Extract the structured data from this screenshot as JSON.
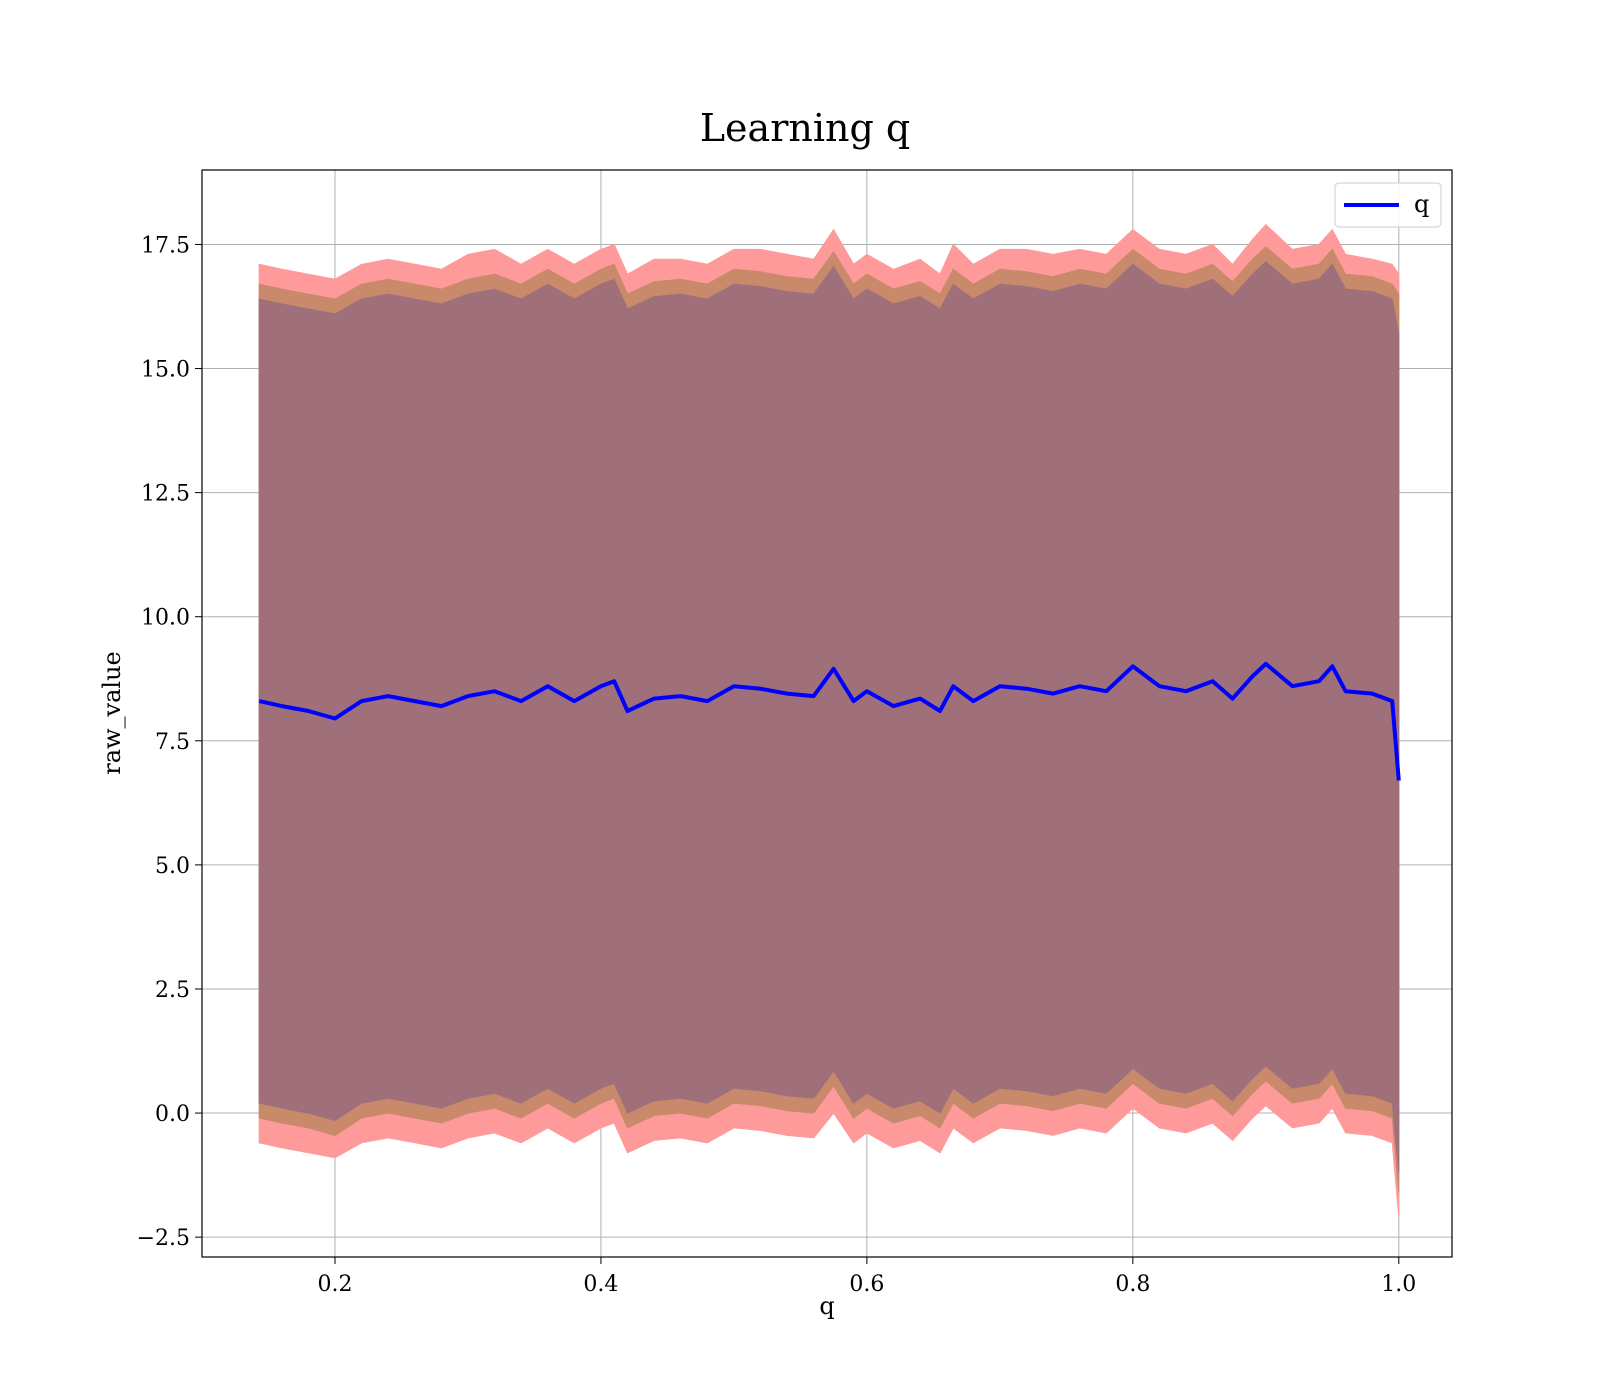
{
  "chart_data": {
    "type": "line",
    "title": "Learning q",
    "xlabel": "q",
    "ylabel": "raw_value",
    "xlim": [
      0.1,
      1.04
    ],
    "ylim": [
      -2.9,
      19.0
    ],
    "x_ticks": [
      0.2,
      0.4,
      0.6,
      0.8,
      1.0
    ],
    "x_tick_labels": [
      "0.2",
      "0.4",
      "0.6",
      "0.8",
      "1.0"
    ],
    "y_ticks": [
      -2.5,
      0.0,
      2.5,
      5.0,
      7.5,
      10.0,
      12.5,
      15.0,
      17.5
    ],
    "y_tick_labels": [
      "−2.5",
      "0.0",
      "2.5",
      "5.0",
      "7.5",
      "10.0",
      "12.5",
      "15.0",
      "17.5"
    ],
    "grid": true,
    "legend": {
      "position": "top-right",
      "entries": [
        "q"
      ]
    },
    "colors": {
      "line": "#0000ff",
      "band_outer": "#ff9a9a",
      "band_middle": "#c88a6a",
      "band_inner": "#a0707a"
    },
    "series": [
      {
        "name": "q",
        "x": [
          0.143,
          0.16,
          0.18,
          0.2,
          0.22,
          0.24,
          0.26,
          0.28,
          0.3,
          0.32,
          0.34,
          0.36,
          0.38,
          0.4,
          0.41,
          0.42,
          0.44,
          0.46,
          0.48,
          0.5,
          0.52,
          0.54,
          0.56,
          0.575,
          0.59,
          0.6,
          0.62,
          0.64,
          0.655,
          0.665,
          0.68,
          0.7,
          0.72,
          0.74,
          0.76,
          0.78,
          0.8,
          0.82,
          0.84,
          0.86,
          0.875,
          0.89,
          0.9,
          0.92,
          0.94,
          0.95,
          0.96,
          0.98,
          0.995,
          1.0
        ],
        "y": [
          8.3,
          8.2,
          8.1,
          7.95,
          8.3,
          8.4,
          8.3,
          8.2,
          8.4,
          8.5,
          8.3,
          8.6,
          8.3,
          8.6,
          8.7,
          8.1,
          8.35,
          8.4,
          8.3,
          8.6,
          8.55,
          8.45,
          8.4,
          8.95,
          8.3,
          8.5,
          8.2,
          8.35,
          8.1,
          8.6,
          8.3,
          8.6,
          8.55,
          8.45,
          8.6,
          8.5,
          9.0,
          8.6,
          8.5,
          8.7,
          8.35,
          8.8,
          9.05,
          8.6,
          8.7,
          9.0,
          8.5,
          8.45,
          8.3,
          6.7
        ]
      }
    ],
    "bands": [
      {
        "name": "outer",
        "upper": [
          17.1,
          17.0,
          16.9,
          16.8,
          17.1,
          17.2,
          17.1,
          17.0,
          17.3,
          17.4,
          17.1,
          17.4,
          17.1,
          17.4,
          17.5,
          16.9,
          17.2,
          17.2,
          17.1,
          17.4,
          17.4,
          17.3,
          17.2,
          17.8,
          17.1,
          17.3,
          17.0,
          17.2,
          16.9,
          17.5,
          17.1,
          17.4,
          17.4,
          17.3,
          17.4,
          17.3,
          17.8,
          17.4,
          17.3,
          17.5,
          17.1,
          17.6,
          17.9,
          17.4,
          17.5,
          17.8,
          17.3,
          17.2,
          17.1,
          16.9
        ],
        "lower": [
          -0.6,
          -0.7,
          -0.8,
          -0.9,
          -0.6,
          -0.5,
          -0.6,
          -0.7,
          -0.5,
          -0.4,
          -0.6,
          -0.3,
          -0.6,
          -0.3,
          -0.2,
          -0.8,
          -0.55,
          -0.5,
          -0.6,
          -0.3,
          -0.35,
          -0.45,
          -0.5,
          0.0,
          -0.6,
          -0.4,
          -0.7,
          -0.55,
          -0.8,
          -0.3,
          -0.6,
          -0.3,
          -0.35,
          -0.45,
          -0.3,
          -0.4,
          0.1,
          -0.3,
          -0.4,
          -0.2,
          -0.55,
          -0.1,
          0.15,
          -0.3,
          -0.2,
          0.1,
          -0.4,
          -0.45,
          -0.6,
          -2.1
        ]
      },
      {
        "name": "middle",
        "upper": [
          16.7,
          16.6,
          16.5,
          16.4,
          16.7,
          16.8,
          16.7,
          16.6,
          16.8,
          16.9,
          16.7,
          17.0,
          16.7,
          17.0,
          17.1,
          16.5,
          16.75,
          16.8,
          16.7,
          17.0,
          16.95,
          16.85,
          16.8,
          17.35,
          16.7,
          16.9,
          16.6,
          16.75,
          16.5,
          17.0,
          16.7,
          17.0,
          16.95,
          16.85,
          17.0,
          16.9,
          17.4,
          17.0,
          16.9,
          17.1,
          16.75,
          17.2,
          17.45,
          17.0,
          17.1,
          17.4,
          16.9,
          16.85,
          16.7,
          16.5
        ],
        "lower": [
          -0.1,
          -0.2,
          -0.3,
          -0.45,
          -0.1,
          0.0,
          -0.1,
          -0.2,
          0.0,
          0.1,
          -0.1,
          0.2,
          -0.1,
          0.2,
          0.3,
          -0.3,
          -0.05,
          0.0,
          -0.1,
          0.2,
          0.15,
          0.05,
          0.0,
          0.55,
          -0.1,
          0.1,
          -0.2,
          -0.05,
          -0.3,
          0.2,
          -0.1,
          0.2,
          0.15,
          0.05,
          0.2,
          0.1,
          0.6,
          0.2,
          0.1,
          0.3,
          -0.05,
          0.4,
          0.65,
          0.2,
          0.3,
          0.6,
          0.1,
          0.05,
          -0.1,
          -1.6
        ]
      },
      {
        "name": "inner",
        "upper": [
          16.4,
          16.3,
          16.2,
          16.1,
          16.4,
          16.5,
          16.4,
          16.3,
          16.5,
          16.6,
          16.4,
          16.7,
          16.4,
          16.7,
          16.8,
          16.2,
          16.45,
          16.5,
          16.4,
          16.7,
          16.65,
          16.55,
          16.5,
          17.05,
          16.4,
          16.6,
          16.3,
          16.45,
          16.2,
          16.7,
          16.4,
          16.7,
          16.65,
          16.55,
          16.7,
          16.6,
          17.1,
          16.7,
          16.6,
          16.8,
          16.45,
          16.9,
          17.15,
          16.7,
          16.8,
          17.1,
          16.6,
          16.55,
          16.4,
          15.7
        ],
        "lower": [
          0.2,
          0.1,
          0.0,
          -0.15,
          0.2,
          0.3,
          0.2,
          0.1,
          0.3,
          0.4,
          0.2,
          0.5,
          0.2,
          0.5,
          0.6,
          0.0,
          0.25,
          0.3,
          0.2,
          0.5,
          0.45,
          0.35,
          0.3,
          0.85,
          0.2,
          0.4,
          0.1,
          0.25,
          0.0,
          0.5,
          0.2,
          0.5,
          0.45,
          0.35,
          0.5,
          0.4,
          0.9,
          0.5,
          0.4,
          0.6,
          0.25,
          0.7,
          0.95,
          0.5,
          0.6,
          0.9,
          0.4,
          0.35,
          0.2,
          -1.2
        ]
      }
    ]
  }
}
